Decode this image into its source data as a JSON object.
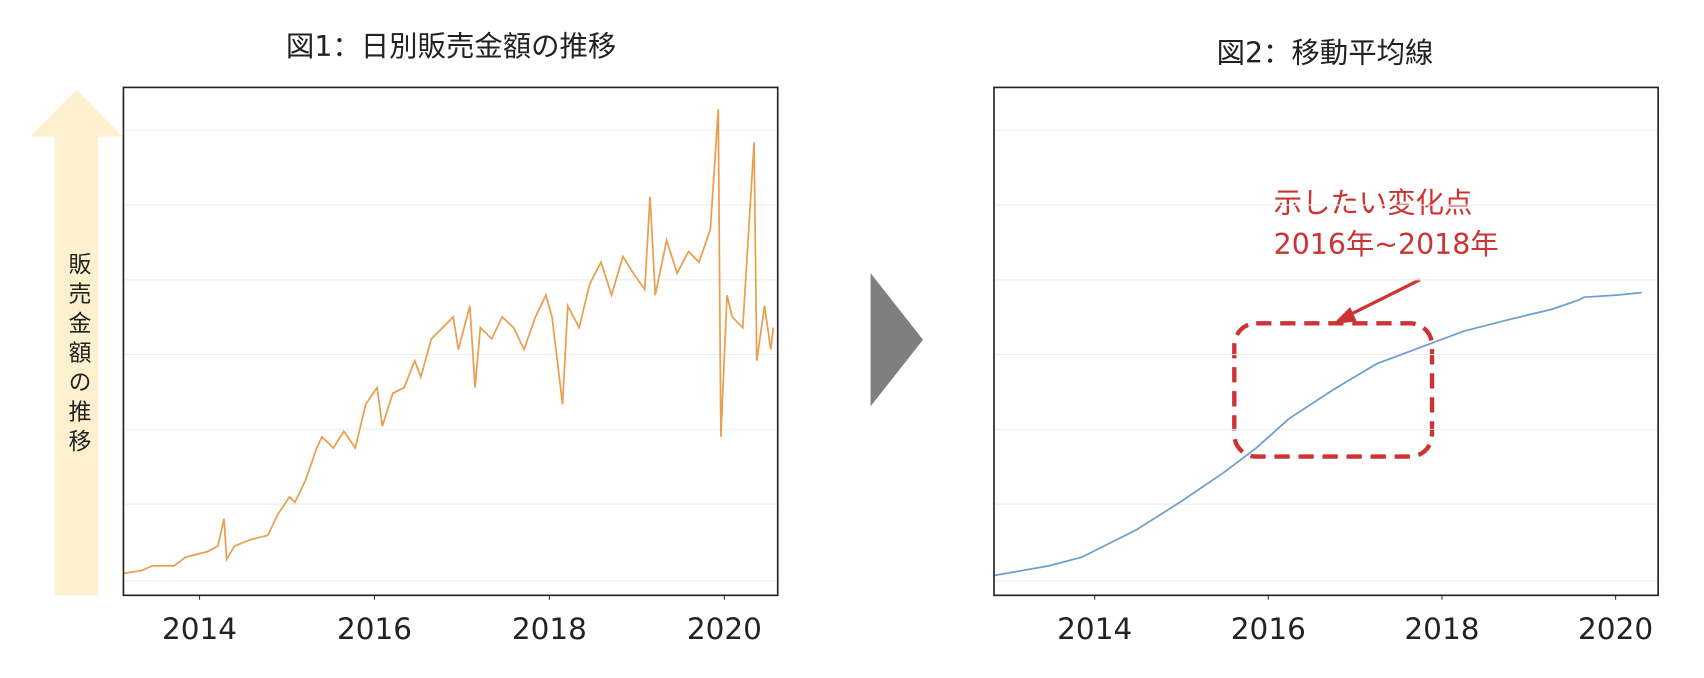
{
  "chart_data": [
    {
      "type": "line",
      "title": "図1：日別販売金額の推移",
      "y_label": "販売金額の推移",
      "x": [
        2013.13,
        2013.34,
        2013.46,
        2013.71,
        2013.84,
        2014.09,
        2014.21,
        2014.28,
        2014.31,
        2014.4,
        2014.59,
        2014.78,
        2014.9,
        2015.03,
        2015.09,
        2015.21,
        2015.34,
        2015.4,
        2015.53,
        2015.65,
        2015.78,
        2015.9,
        2016.03,
        2016.09,
        2016.21,
        2016.34,
        2016.46,
        2016.53,
        2016.65,
        2016.78,
        2016.9,
        2016.96,
        2017.09,
        2017.15,
        2017.21,
        2017.34,
        2017.46,
        2017.59,
        2017.71,
        2017.84,
        2017.96,
        2018.03,
        2018.15,
        2018.21,
        2018.34,
        2018.46,
        2018.59,
        2018.71,
        2018.84,
        2018.96,
        2019.09,
        2019.15,
        2019.21,
        2019.34,
        2019.46,
        2019.59,
        2019.71,
        2019.84,
        2019.93,
        2019.96,
        2020.03,
        2020.09,
        2020.21,
        2020.34,
        2020.37,
        2020.46,
        2020.53,
        2020.56
      ],
      "series": [
        {
          "color": "#e8a050",
          "values": [
            4.3,
            4.9,
            5.8,
            5.8,
            7.5,
            8.6,
            9.7,
            15.1,
            7.1,
            9.7,
            11.0,
            11.8,
            16.1,
            19.4,
            18.3,
            22.6,
            29.0,
            31.2,
            29.0,
            32.3,
            29.0,
            37.6,
            40.9,
            33.3,
            39.8,
            40.9,
            46.2,
            43.0,
            50.5,
            52.7,
            54.8,
            48.4,
            57.0,
            40.9,
            52.7,
            50.5,
            54.8,
            52.7,
            48.4,
            54.8,
            59.1,
            54.8,
            37.6,
            57.0,
            52.7,
            61.3,
            65.6,
            59.1,
            66.7,
            63.4,
            60.2,
            78.5,
            59.1,
            69.9,
            63.4,
            67.7,
            65.6,
            72.0,
            95.7,
            31.2,
            59.1,
            54.8,
            52.7,
            89.2,
            46.2,
            57.0,
            48.4,
            52.7
          ]
        }
      ],
      "xlim": [
        2013.13,
        2020.61
      ],
      "xticks": [
        2014,
        2016,
        2018,
        2020
      ],
      "ylim": [
        0,
        100
      ],
      "grid": true
    },
    {
      "type": "line",
      "title": "図2：移動平均線",
      "annotations": [
        "示したい変化点",
        "2016年~2018年"
      ],
      "x": [
        2012.84,
        2013.47,
        2013.85,
        2014.48,
        2014.98,
        2015.48,
        2015.86,
        2016.24,
        2016.74,
        2017.25,
        2017.75,
        2018.25,
        2018.75,
        2019.26,
        2019.57,
        2019.64,
        2020.01,
        2020.3
      ],
      "series": [
        {
          "color": "#6a9fcf",
          "values": [
            3.9,
            5.8,
            7.5,
            12.9,
            18.3,
            24.1,
            29.0,
            34.8,
            40.4,
            45.6,
            48.8,
            52.0,
            54.2,
            56.3,
            58.1,
            58.7,
            59.1,
            59.6
          ]
        }
      ],
      "xlim": [
        2012.84,
        2020.49
      ],
      "xticks": [
        2014,
        2016,
        2018,
        2020
      ],
      "ylim": [
        0,
        100
      ],
      "grid": true
    }
  ]
}
